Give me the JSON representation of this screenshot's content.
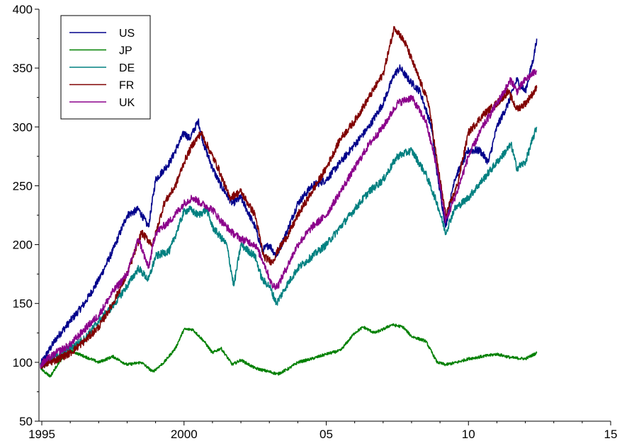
{
  "chart_data": {
    "type": "line",
    "title": "",
    "xlabel": "",
    "ylabel": "",
    "xlim": [
      1994.9,
      2015
    ],
    "ylim": [
      50,
      400
    ],
    "grid": false,
    "legend_position": "top-left",
    "x_ticks": [
      {
        "value": 1995,
        "label": "1995"
      },
      {
        "value": 2000,
        "label": "2000"
      },
      {
        "value": 2005,
        "label": "05"
      },
      {
        "value": 2010,
        "label": "10"
      },
      {
        "value": 2015,
        "label": "15"
      }
    ],
    "y_ticks": [
      {
        "value": 50,
        "label": "50"
      },
      {
        "value": 100,
        "label": "100"
      },
      {
        "value": 150,
        "label": "150"
      },
      {
        "value": 200,
        "label": "200"
      },
      {
        "value": 250,
        "label": "250"
      },
      {
        "value": 300,
        "label": "300"
      },
      {
        "value": 350,
        "label": "350"
      },
      {
        "value": 400,
        "label": "400"
      }
    ],
    "series": [
      {
        "name": "US",
        "color": "#00008b",
        "x": [
          1994.95,
          1995.5,
          1996,
          1996.5,
          1997,
          1997.5,
          1998,
          1998.4,
          1998.75,
          1999,
          1999.5,
          2000,
          2000.2,
          2000.5,
          2000.7,
          2001,
          2001.3,
          2001.7,
          2002,
          2002.5,
          2002.75,
          2003,
          2003.25,
          2003.6,
          2004,
          2004.5,
          2005,
          2005.5,
          2006,
          2006.5,
          2007,
          2007.4,
          2007.6,
          2007.9,
          2008.3,
          2008.7,
          2008.9,
          2009.2,
          2009.5,
          2010,
          2010.4,
          2010.7,
          2011,
          2011.4,
          2011.7,
          2012,
          2012.3,
          2012.4
        ],
        "y": [
          98,
          120,
          135,
          150,
          170,
          195,
          225,
          230,
          215,
          255,
          270,
          295,
          290,
          305,
          285,
          265,
          250,
          235,
          240,
          215,
          195,
          200,
          190,
          210,
          235,
          250,
          255,
          270,
          285,
          300,
          320,
          345,
          350,
          340,
          330,
          300,
          260,
          215,
          255,
          280,
          280,
          270,
          300,
          320,
          340,
          330,
          360,
          375
        ]
      },
      {
        "name": "JP",
        "color": "#008000",
        "x": [
          1994.95,
          1995.3,
          1995.6,
          1996,
          1996.5,
          1997,
          1997.5,
          1998,
          1998.5,
          1998.9,
          1999.3,
          1999.7,
          2000,
          2000.3,
          2000.7,
          2001,
          2001.3,
          2001.7,
          2002,
          2002.5,
          2003,
          2003.3,
          2003.7,
          2004,
          2004.5,
          2005,
          2005.5,
          2006,
          2006.3,
          2006.7,
          2007,
          2007.3,
          2007.7,
          2008,
          2008.5,
          2008.9,
          2009.2,
          2009.6,
          2010,
          2010.5,
          2011,
          2011.5,
          2012,
          2012.4
        ],
        "y": [
          95,
          88,
          100,
          110,
          105,
          100,
          105,
          98,
          100,
          92,
          100,
          112,
          128,
          128,
          118,
          108,
          112,
          98,
          102,
          95,
          92,
          90,
          95,
          100,
          103,
          107,
          110,
          125,
          130,
          125,
          128,
          132,
          130,
          122,
          118,
          100,
          98,
          100,
          103,
          105,
          107,
          104,
          103,
          108
        ]
      },
      {
        "name": "DE",
        "color": "#008080",
        "x": [
          1994.95,
          1995.5,
          1996,
          1996.5,
          1997,
          1997.5,
          1998,
          1998.4,
          1998.75,
          1999,
          1999.5,
          2000,
          2000.2,
          2000.5,
          2000.8,
          2001,
          2001.5,
          2001.75,
          2002,
          2002.5,
          2002.75,
          2003,
          2003.25,
          2003.6,
          2004,
          2004.5,
          2005,
          2005.5,
          2006,
          2006.5,
          2007,
          2007.5,
          2008,
          2008.5,
          2008.9,
          2009.2,
          2009.5,
          2010,
          2010.5,
          2011,
          2011.5,
          2011.7,
          2012,
          2012.4
        ],
        "y": [
          97,
          105,
          112,
          120,
          135,
          148,
          165,
          180,
          170,
          190,
          195,
          228,
          230,
          225,
          230,
          215,
          200,
          165,
          200,
          190,
          170,
          165,
          150,
          165,
          180,
          190,
          200,
          215,
          230,
          245,
          255,
          275,
          280,
          260,
          235,
          210,
          230,
          240,
          255,
          270,
          285,
          265,
          270,
          300
        ]
      },
      {
        "name": "FR",
        "color": "#800000",
        "x": [
          1994.95,
          1995.5,
          1996,
          1996.5,
          1997,
          1997.5,
          1998,
          1998.5,
          1998.9,
          1999.3,
          1999.7,
          2000,
          2000.3,
          2000.6,
          2000.9,
          2001.2,
          2001.6,
          2002,
          2002.5,
          2002.8,
          2003.1,
          2003.3,
          2003.7,
          2004,
          2004.5,
          2005,
          2005.5,
          2006,
          2006.5,
          2007,
          2007.4,
          2007.6,
          2007.8,
          2008.2,
          2008.6,
          2008.9,
          2009.2,
          2009.6,
          2010,
          2010.5,
          2011,
          2011.4,
          2011.7,
          2012,
          2012.4
        ],
        "y": [
          97,
          102,
          108,
          118,
          130,
          150,
          175,
          210,
          200,
          235,
          250,
          270,
          285,
          295,
          280,
          265,
          240,
          245,
          225,
          190,
          185,
          195,
          210,
          225,
          245,
          265,
          290,
          305,
          325,
          345,
          385,
          378,
          370,
          345,
          320,
          270,
          225,
          250,
          295,
          310,
          320,
          330,
          315,
          320,
          333
        ]
      },
      {
        "name": "UK",
        "color": "#8b008b",
        "x": [
          1994.95,
          1995.5,
          1996,
          1996.5,
          1997,
          1997.5,
          1998,
          1998.4,
          1998.75,
          1999,
          1999.5,
          2000,
          2000.3,
          2000.6,
          2001,
          2001.3,
          2001.7,
          2002,
          2002.5,
          2002.8,
          2003.1,
          2003.3,
          2003.7,
          2004,
          2004.5,
          2005,
          2005.5,
          2006,
          2006.5,
          2007,
          2007.5,
          2008,
          2008.5,
          2008.9,
          2009.2,
          2009.6,
          2010,
          2010.5,
          2011,
          2011.5,
          2011.7,
          2012,
          2012.4
        ],
        "y": [
          98,
          108,
          115,
          128,
          140,
          160,
          175,
          205,
          180,
          210,
          220,
          235,
          240,
          235,
          230,
          220,
          210,
          205,
          200,
          185,
          165,
          165,
          185,
          200,
          215,
          225,
          245,
          265,
          285,
          300,
          320,
          325,
          305,
          265,
          220,
          245,
          275,
          300,
          320,
          340,
          330,
          340,
          348
        ]
      }
    ],
    "legend_entries": [
      "US",
      "JP",
      "DE",
      "FR",
      "UK"
    ]
  }
}
